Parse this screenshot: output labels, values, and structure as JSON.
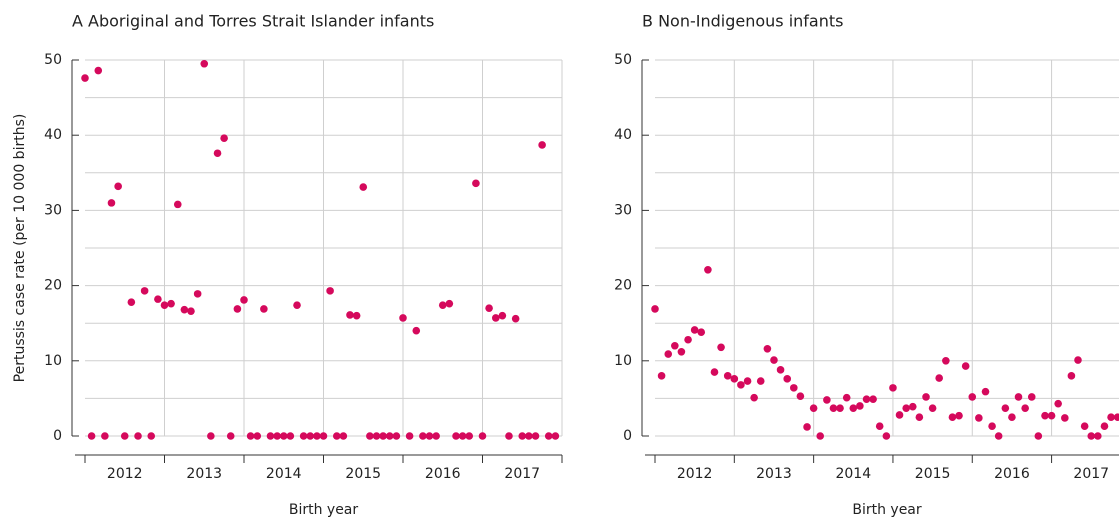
{
  "chart_data": [
    {
      "type": "scatter",
      "title": "A  Aboriginal and Torres Strait Islander infants",
      "x_label": "Birth year",
      "y_label": "Pertussis case rate (per 10 000 births)",
      "color": "#d5095c",
      "x": [
        2012,
        2012.083,
        2012.167,
        2012.25,
        2012.333,
        2012.417,
        2012.5,
        2012.583,
        2012.667,
        2012.75,
        2012.833,
        2012.917,
        2013,
        2013.083,
        2013.167,
        2013.25,
        2013.333,
        2013.417,
        2013.5,
        2013.583,
        2013.667,
        2013.75,
        2013.833,
        2013.917,
        2014,
        2014.083,
        2014.167,
        2014.25,
        2014.333,
        2014.417,
        2014.5,
        2014.583,
        2014.667,
        2014.75,
        2014.833,
        2014.917,
        2015,
        2015.083,
        2015.167,
        2015.25,
        2015.333,
        2015.417,
        2015.5,
        2015.583,
        2015.667,
        2015.75,
        2015.833,
        2015.917,
        2016,
        2016.083,
        2016.167,
        2016.25,
        2016.333,
        2016.417,
        2016.5,
        2016.583,
        2016.667,
        2016.75,
        2016.833,
        2016.917,
        2017,
        2017.083,
        2017.167,
        2017.25,
        2017.333,
        2017.417,
        2017.5,
        2017.583,
        2017.667,
        2017.75,
        2017.833,
        2017.917
      ],
      "values": [
        47.6,
        0,
        48.6,
        0,
        31.0,
        33.2,
        0,
        17.8,
        0,
        19.3,
        0,
        18.2,
        17.4,
        17.6,
        30.8,
        16.8,
        16.6,
        18.9,
        49.5,
        0,
        37.6,
        39.6,
        0,
        16.9,
        18.1,
        0,
        0,
        16.9,
        0,
        0,
        0,
        0,
        17.4,
        0,
        0,
        0,
        0,
        19.3,
        0,
        0,
        16.1,
        16.0,
        33.1,
        0,
        0,
        0,
        0,
        0,
        15.7,
        0,
        14.0,
        0,
        0,
        0,
        17.4,
        17.6,
        0,
        0,
        0,
        33.6,
        0,
        17.0,
        15.7,
        16.0,
        0,
        15.6,
        0,
        0,
        0,
        38.7,
        0,
        0
      ],
      "xlim": [
        2012,
        2018
      ],
      "xticks": [
        2012,
        2013,
        2014,
        2015,
        2016,
        2017
      ],
      "ylim": [
        0,
        50
      ],
      "yticks": [
        0,
        10,
        20,
        30,
        40,
        50
      ],
      "grid": true,
      "grid_step": 5
    },
    {
      "type": "scatter",
      "title": "B  Non-Indigenous infants",
      "x_label": "Birth year",
      "color": "#d5095c",
      "x": [
        2012,
        2012.083,
        2012.167,
        2012.25,
        2012.333,
        2012.417,
        2012.5,
        2012.583,
        2012.667,
        2012.75,
        2012.833,
        2012.917,
        2013,
        2013.083,
        2013.167,
        2013.25,
        2013.333,
        2013.417,
        2013.5,
        2013.583,
        2013.667,
        2013.75,
        2013.833,
        2013.917,
        2014,
        2014.083,
        2014.167,
        2014.25,
        2014.333,
        2014.417,
        2014.5,
        2014.583,
        2014.667,
        2014.75,
        2014.833,
        2014.917,
        2015,
        2015.083,
        2015.167,
        2015.25,
        2015.333,
        2015.417,
        2015.5,
        2015.583,
        2015.667,
        2015.75,
        2015.833,
        2015.917,
        2016,
        2016.083,
        2016.167,
        2016.25,
        2016.333,
        2016.417,
        2016.5,
        2016.583,
        2016.667,
        2016.75,
        2016.833,
        2016.917,
        2017,
        2017.083,
        2017.167,
        2017.25,
        2017.333,
        2017.417,
        2017.5,
        2017.583,
        2017.667,
        2017.75,
        2017.833
      ],
      "values": [
        16.9,
        8.0,
        10.9,
        12.0,
        11.2,
        12.8,
        14.1,
        13.8,
        22.1,
        8.5,
        11.8,
        8.0,
        7.6,
        6.8,
        7.3,
        5.1,
        7.3,
        11.6,
        10.1,
        8.8,
        7.6,
        6.4,
        5.3,
        1.2,
        3.7,
        0,
        4.8,
        3.7,
        3.7,
        5.1,
        3.7,
        4.0,
        4.9,
        4.9,
        1.3,
        0,
        6.4,
        2.8,
        3.7,
        3.9,
        2.5,
        5.2,
        3.7,
        7.7,
        10.0,
        2.5,
        2.7,
        9.3,
        5.2,
        2.4,
        5.9,
        1.3,
        0,
        3.7,
        2.5,
        5.2,
        3.7,
        5.2,
        0,
        2.7,
        2.7,
        4.3,
        2.4,
        8.0,
        10.1,
        1.3,
        0,
        0,
        1.3,
        2.5,
        2.5
      ],
      "xlim": [
        2012,
        2017.85
      ],
      "xticks": [
        2012,
        2013,
        2014,
        2015,
        2016,
        2017
      ],
      "ylim": [
        0,
        50
      ],
      "yticks": [
        0,
        10,
        20,
        30,
        40,
        50
      ],
      "grid": true,
      "grid_step": 5
    }
  ]
}
